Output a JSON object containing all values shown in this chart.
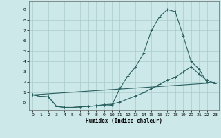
{
  "xlabel": "Humidex (Indice chaleur)",
  "xlim": [
    -0.5,
    23.5
  ],
  "ylim": [
    -0.7,
    9.8
  ],
  "xticks": [
    0,
    1,
    2,
    3,
    4,
    5,
    6,
    7,
    8,
    9,
    10,
    11,
    12,
    13,
    14,
    15,
    16,
    17,
    18,
    19,
    20,
    21,
    22,
    23
  ],
  "yticks": [
    0,
    1,
    2,
    3,
    4,
    5,
    6,
    7,
    8,
    9
  ],
  "ytick_labels": [
    "- 0",
    "1",
    "2",
    "3",
    "4",
    "5",
    "6",
    "7",
    "8",
    "9"
  ],
  "bg_color": "#cce8e8",
  "grid_color": "#aacccc",
  "line_color": "#2a6060",
  "line1_x": [
    0,
    1,
    2,
    3,
    4,
    5,
    6,
    7,
    8,
    9,
    10,
    11,
    12,
    13,
    14,
    15,
    16,
    17,
    18,
    19,
    20,
    21,
    22,
    23
  ],
  "line1_y": [
    0.8,
    0.65,
    0.6,
    -0.3,
    -0.4,
    -0.4,
    -0.35,
    -0.3,
    -0.25,
    -0.15,
    -0.2,
    1.4,
    2.6,
    3.5,
    4.8,
    7.0,
    8.3,
    9.0,
    8.8,
    6.5,
    4.0,
    3.3,
    2.0,
    1.9
  ],
  "line2_x": [
    0,
    1,
    2,
    3,
    4,
    5,
    6,
    7,
    8,
    9,
    10,
    11,
    12,
    13,
    14,
    15,
    16,
    17,
    18,
    19,
    20,
    21,
    22,
    23
  ],
  "line2_y": [
    0.8,
    0.65,
    0.6,
    -0.3,
    -0.4,
    -0.4,
    -0.35,
    -0.3,
    -0.25,
    -0.15,
    -0.1,
    0.1,
    0.4,
    0.7,
    1.0,
    1.4,
    1.8,
    2.2,
    2.5,
    3.0,
    3.5,
    2.8,
    2.2,
    1.9
  ],
  "line3_x": [
    0,
    1,
    2,
    3,
    4,
    5,
    6,
    7,
    8,
    9,
    10,
    11,
    12,
    13,
    14,
    15,
    16,
    17,
    18,
    19,
    20,
    21,
    22,
    23
  ],
  "line3_y": [
    0.8,
    0.85,
    0.9,
    0.95,
    1.0,
    1.05,
    1.1,
    1.15,
    1.2,
    1.25,
    1.3,
    1.35,
    1.4,
    1.45,
    1.5,
    1.55,
    1.6,
    1.65,
    1.7,
    1.75,
    1.8,
    1.85,
    1.9,
    2.0
  ]
}
